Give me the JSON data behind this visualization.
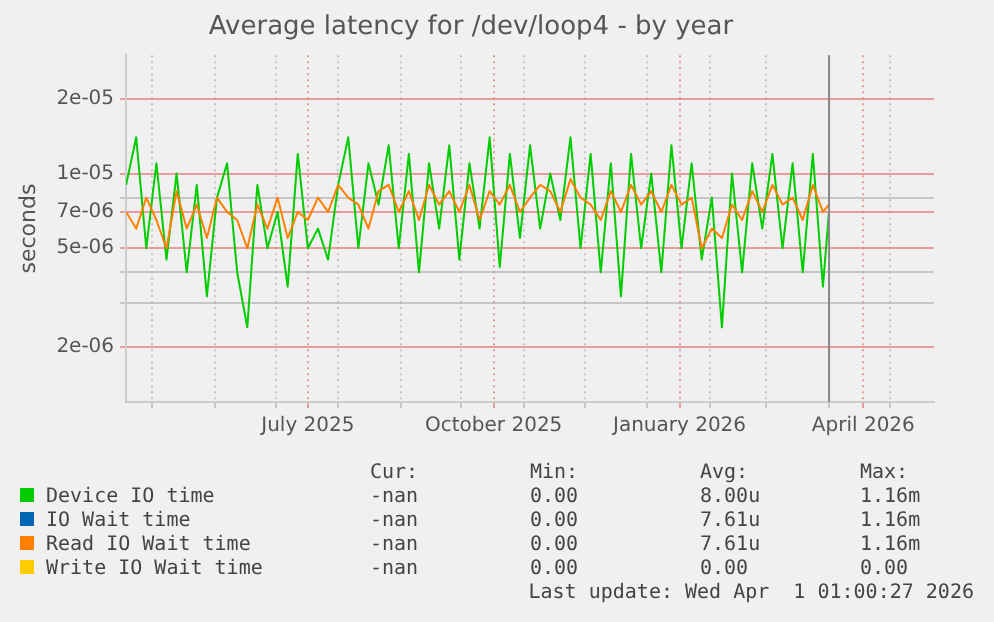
{
  "chart_data": {
    "type": "line",
    "title": "Average latency for /dev/loop4 - by year",
    "ylabel": "seconds",
    "log": "y",
    "grid": true,
    "legend": "bottom",
    "marker": "none",
    "line_style": "solid",
    "xlim": [
      "2025-04-18",
      "2026-05-23"
    ],
    "xticks": [
      {
        "value": "2025-05-01",
        "label": null
      },
      {
        "value": "2025-06-01",
        "label": null
      },
      {
        "value": "2025-07-01",
        "label": null
      },
      {
        "value": "2025-07-17",
        "label": "July 2025"
      },
      {
        "value": "2025-08-01",
        "label": null
      },
      {
        "value": "2025-09-01",
        "label": null
      },
      {
        "value": "2025-10-01",
        "label": null
      },
      {
        "value": "2025-10-17",
        "label": "October 2025"
      },
      {
        "value": "2025-11-01",
        "label": null
      },
      {
        "value": "2025-12-01",
        "label": null
      },
      {
        "value": "2026-01-01",
        "label": null
      },
      {
        "value": "2026-01-17",
        "label": "January 2026"
      },
      {
        "value": "2026-02-01",
        "label": null
      },
      {
        "value": "2026-03-01",
        "label": null
      },
      {
        "value": "2026-04-01",
        "label": null
      },
      {
        "value": "2026-04-18",
        "label": "April 2026"
      },
      {
        "value": "2026-05-01",
        "label": null
      }
    ],
    "ylim": [
      1.2e-06,
      3e-05
    ],
    "yticks": [
      {
        "value": 2e-06,
        "label": "2e-06"
      },
      {
        "value": 3e-06,
        "label": null
      },
      {
        "value": 4e-06,
        "label": null
      },
      {
        "value": 5e-06,
        "label": "5e-06"
      },
      {
        "value": 7e-06,
        "label": "7e-06"
      },
      {
        "value": 8e-06,
        "label": null
      },
      {
        "value": 1e-05,
        "label": "1e-05"
      },
      {
        "value": 2e-05,
        "label": "2e-05"
      }
    ],
    "x": [
      "2025-04-18",
      "2025-04-23",
      "2025-04-28",
      "2025-05-03",
      "2025-05-08",
      "2025-05-13",
      "2025-05-18",
      "2025-05-23",
      "2025-05-28",
      "2025-06-02",
      "2025-06-07",
      "2025-06-12",
      "2025-06-17",
      "2025-06-22",
      "2025-06-27",
      "2025-07-02",
      "2025-07-07",
      "2025-07-12",
      "2025-07-17",
      "2025-07-22",
      "2025-07-27",
      "2025-08-01",
      "2025-08-06",
      "2025-08-11",
      "2025-08-16",
      "2025-08-21",
      "2025-08-26",
      "2025-08-31",
      "2025-09-05",
      "2025-09-10",
      "2025-09-15",
      "2025-09-20",
      "2025-09-25",
      "2025-09-30",
      "2025-10-05",
      "2025-10-10",
      "2025-10-15",
      "2025-10-20",
      "2025-10-25",
      "2025-10-30",
      "2025-11-04",
      "2025-11-09",
      "2025-11-14",
      "2025-11-19",
      "2025-11-24",
      "2025-11-29",
      "2025-12-04",
      "2025-12-09",
      "2025-12-14",
      "2025-12-19",
      "2025-12-24",
      "2025-12-29",
      "2026-01-03",
      "2026-01-08",
      "2026-01-13",
      "2026-01-18",
      "2026-01-23",
      "2026-01-28",
      "2026-02-02",
      "2026-02-07",
      "2026-02-12",
      "2026-02-17",
      "2026-02-22",
      "2026-02-27",
      "2026-03-04",
      "2026-03-09",
      "2026-03-14",
      "2026-03-19",
      "2026-03-24",
      "2026-03-29",
      "2026-04-01"
    ],
    "series": [
      {
        "name": "Device IO time",
        "color": "#00cc00",
        "values": [
          9e-06,
          1.4e-05,
          5e-06,
          1.1e-05,
          4.5e-06,
          1e-05,
          4e-06,
          9e-06,
          3.2e-06,
          8e-06,
          1.1e-05,
          4e-06,
          2.4e-06,
          9e-06,
          5e-06,
          7e-06,
          3.5e-06,
          1.2e-05,
          5e-06,
          6e-06,
          4.5e-06,
          9e-06,
          1.4e-05,
          5e-06,
          1.1e-05,
          7.5e-06,
          1.3e-05,
          5e-06,
          1.2e-05,
          4e-06,
          1.1e-05,
          6e-06,
          1.3e-05,
          4.5e-06,
          1.1e-05,
          6e-06,
          1.4e-05,
          4.2e-06,
          1.2e-05,
          5.5e-06,
          1.3e-05,
          6e-06,
          1e-05,
          6.5e-06,
          1.4e-05,
          5e-06,
          1.2e-05,
          4e-06,
          1.1e-05,
          3.2e-06,
          1.2e-05,
          5e-06,
          1e-05,
          4e-06,
          1.3e-05,
          5e-06,
          1.1e-05,
          4.5e-06,
          8e-06,
          2.4e-06,
          1e-05,
          4e-06,
          1.1e-05,
          6e-06,
          1.2e-05,
          5e-06,
          1.1e-05,
          4e-06,
          1.2e-05,
          3.5e-06,
          7e-06
        ]
      },
      {
        "name": "IO Wait time",
        "color": "#0066b3",
        "values": [
          null,
          null,
          null,
          null,
          null,
          null,
          null,
          null,
          null,
          null,
          null,
          null,
          null,
          null,
          null,
          null,
          null,
          null,
          null,
          null,
          null,
          null,
          null,
          null,
          null,
          null,
          null,
          null,
          null,
          null,
          null,
          null,
          null,
          null,
          null,
          null,
          null,
          null,
          null,
          null,
          null,
          null,
          null,
          null,
          null,
          null,
          null,
          null,
          null,
          null,
          null,
          null,
          null,
          null,
          null,
          null,
          null,
          null,
          null,
          null,
          null,
          null,
          null,
          null,
          null,
          null,
          null,
          null,
          null,
          null,
          null
        ]
      },
      {
        "name": "Read IO Wait time",
        "color": "#ff8000",
        "values": [
          7e-06,
          6e-06,
          8e-06,
          6.5e-06,
          5e-06,
          8.5e-06,
          6e-06,
          7.5e-06,
          5.5e-06,
          8e-06,
          7e-06,
          6.5e-06,
          5e-06,
          7.5e-06,
          6e-06,
          8e-06,
          5.5e-06,
          7e-06,
          6.5e-06,
          8e-06,
          7e-06,
          9e-06,
          8e-06,
          7.5e-06,
          6e-06,
          8.5e-06,
          9e-06,
          7e-06,
          8.5e-06,
          6.5e-06,
          9e-06,
          7.5e-06,
          8.5e-06,
          7e-06,
          9e-06,
          6.5e-06,
          8.5e-06,
          7.5e-06,
          9e-06,
          7e-06,
          8e-06,
          9e-06,
          8.5e-06,
          7e-06,
          9.5e-06,
          8e-06,
          7.5e-06,
          6.5e-06,
          8.5e-06,
          7e-06,
          9e-06,
          7.5e-06,
          8.5e-06,
          7e-06,
          9e-06,
          7.5e-06,
          8e-06,
          5e-06,
          6e-06,
          5.5e-06,
          7.5e-06,
          6.5e-06,
          8.5e-06,
          7e-06,
          9e-06,
          7.5e-06,
          8e-06,
          6.5e-06,
          9e-06,
          7e-06,
          7.5e-06
        ]
      },
      {
        "name": "Write IO Wait time",
        "color": "#ffcc00",
        "values": [
          null,
          null,
          null,
          null,
          null,
          null,
          null,
          null,
          null,
          null,
          null,
          null,
          null,
          null,
          null,
          null,
          null,
          null,
          null,
          null,
          null,
          null,
          null,
          null,
          null,
          null,
          null,
          null,
          null,
          null,
          null,
          null,
          null,
          null,
          null,
          null,
          null,
          null,
          null,
          null,
          null,
          null,
          null,
          null,
          null,
          null,
          null,
          null,
          null,
          null,
          null,
          null,
          null,
          null,
          null,
          null,
          null,
          null,
          null,
          null,
          null,
          null,
          null,
          null,
          null,
          null,
          null,
          null,
          null,
          null,
          null
        ]
      }
    ],
    "ref_lines": [
      {
        "axis": "x",
        "value": "2026-04-01T01:00",
        "color": "#888888"
      }
    ],
    "annotations": [
      "Cur:",
      "Min:",
      "Avg:",
      "Max:",
      "-nan",
      "0.00",
      "8.00u",
      "1.16m",
      "-nan",
      "0.00",
      "7.61u",
      "1.16m",
      "-nan",
      "0.00",
      "7.61u",
      "1.16m",
      "-nan",
      "0.00",
      "0.00",
      "0.00",
      "Last update: Wed Apr  1 01:00:27 2026"
    ]
  }
}
